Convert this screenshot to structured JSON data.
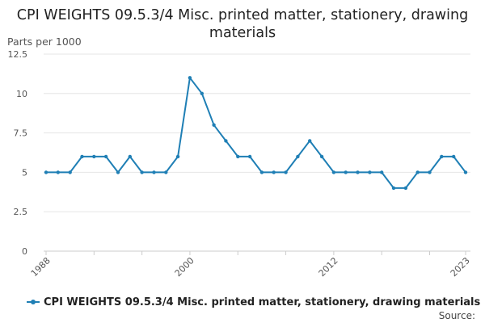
{
  "chart_data": {
    "type": "line",
    "title": "CPI WEIGHTS 09.5.3/4 Misc. printed matter, stationery, drawing materials",
    "ylabel": "Parts per 1000",
    "xlabel": "",
    "x": [
      1988,
      1989,
      1990,
      1991,
      1992,
      1993,
      1994,
      1995,
      1996,
      1997,
      1998,
      1999,
      2000,
      2001,
      2002,
      2003,
      2004,
      2005,
      2006,
      2007,
      2008,
      2009,
      2010,
      2011,
      2012,
      2013,
      2014,
      2015,
      2016,
      2017,
      2018,
      2019,
      2020,
      2021,
      2022,
      2023
    ],
    "series": [
      {
        "name": "CPI WEIGHTS 09.5.3/4 Misc. printed matter, stationery, drawing materials",
        "values": [
          5,
          5,
          5,
          6,
          6,
          6,
          5,
          6,
          5,
          5,
          5,
          6,
          11,
          10,
          8,
          7,
          6,
          6,
          5,
          5,
          5,
          6,
          7,
          6,
          5,
          5,
          5,
          5,
          5,
          4,
          4,
          5,
          5,
          6,
          6,
          5
        ],
        "color": "#1f7fb5"
      }
    ],
    "ylim": [
      0,
      12.5
    ],
    "y_ticks": [
      "0",
      "2.5",
      "5",
      "7.5",
      "10",
      "12.5"
    ],
    "y_tick_values": [
      0,
      2.5,
      5,
      7.5,
      10,
      12.5
    ],
    "x_tick_labels": [
      "1988",
      "2000",
      "2012",
      "2023"
    ],
    "x_tick_values": [
      1988,
      2000,
      2012,
      2023
    ],
    "grid": true,
    "legend_position": "bottom-left"
  },
  "source_label": "Source:"
}
